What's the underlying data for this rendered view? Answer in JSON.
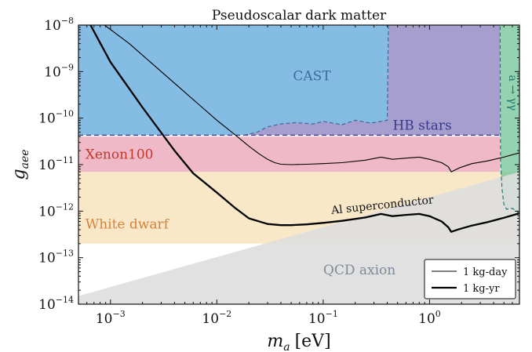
{
  "chart_data": {
    "type": "exclusion-plot",
    "title": "Pseudoscalar dark matter",
    "xlabel_symbol": "m",
    "xlabel_sub": "a",
    "xlabel_unit": "[eV]",
    "ylabel_symbol": "g",
    "ylabel_sub": "aee",
    "x_scale": "log",
    "y_scale": "log",
    "xlim": [
      0.0005,
      7.0
    ],
    "ylim": [
      1e-14,
      1e-08
    ],
    "x_ticks": [
      {
        "value": 0.001,
        "base": "10",
        "exp": "−3"
      },
      {
        "value": 0.01,
        "base": "10",
        "exp": "−2"
      },
      {
        "value": 0.1,
        "base": "10",
        "exp": "−1"
      },
      {
        "value": 1,
        "base": "10",
        "exp": "0"
      }
    ],
    "y_ticks": [
      {
        "value": 1e-08,
        "base": "10",
        "exp": "−8"
      },
      {
        "value": 1e-09,
        "base": "10",
        "exp": "−9"
      },
      {
        "value": 1e-10,
        "base": "10",
        "exp": "−10"
      },
      {
        "value": 1e-11,
        "base": "10",
        "exp": "−11"
      },
      {
        "value": 1e-12,
        "base": "10",
        "exp": "−12"
      },
      {
        "value": 1e-13,
        "base": "10",
        "exp": "−13"
      },
      {
        "value": 1e-14,
        "base": "10",
        "exp": "−14"
      }
    ],
    "regions": [
      {
        "name": "White dwarf",
        "label": "White dwarf",
        "color": "#f2d59a",
        "text_color": "#d8813a",
        "opacity": 0.55,
        "polygon": [
          [
            0.0005,
            2e-13
          ],
          [
            7.0,
            2e-13
          ],
          [
            7.0,
            7e-12
          ],
          [
            0.0005,
            7e-12
          ]
        ],
        "label_at": [
          0.00058,
          4.2e-13
        ]
      },
      {
        "name": "Xenon100",
        "label": "Xenon100",
        "color": "#e37f9a",
        "text_color": "#c0392b",
        "opacity": 0.55,
        "polygon": [
          [
            0.0005,
            7e-12
          ],
          [
            4.6,
            7e-12
          ],
          [
            4.6,
            4e-11
          ],
          [
            0.0005,
            4e-11
          ]
        ],
        "label_at": [
          0.00058,
          1.35e-11
        ]
      },
      {
        "name": "CAST",
        "label": "CAST",
        "color": "#6fb0df",
        "text_color": "#3d6a9a",
        "opacity": 0.85,
        "polygon": [
          [
            0.0005,
            4.3e-11
          ],
          [
            0.018,
            4.3e-11
          ],
          [
            0.024,
            5e-11
          ],
          [
            0.03,
            6.5e-11
          ],
          [
            0.04,
            7.5e-11
          ],
          [
            0.055,
            8e-11
          ],
          [
            0.08,
            7.5e-11
          ],
          [
            0.1,
            8.5e-11
          ],
          [
            0.15,
            7.2e-11
          ],
          [
            0.2,
            9e-11
          ],
          [
            0.28,
            7.8e-11
          ],
          [
            0.4,
            9e-11
          ],
          [
            0.41,
            1e-08
          ],
          [
            0.0005,
            1e-08
          ]
        ],
        "label_at": [
          0.052,
          6.5e-10
        ]
      },
      {
        "name": "HB stars",
        "label": "HB stars",
        "color": "#9c95c9",
        "text_color": "#3a3a8c",
        "opacity": 0.9,
        "polygon": [
          [
            0.0005,
            4.3e-11
          ],
          [
            4.6,
            4.3e-11
          ],
          [
            4.6,
            1e-08
          ],
          [
            0.41,
            1e-08
          ],
          [
            0.4,
            9e-11
          ],
          [
            0.28,
            7.8e-11
          ],
          [
            0.2,
            9e-11
          ],
          [
            0.15,
            7.2e-11
          ],
          [
            0.1,
            8.5e-11
          ],
          [
            0.08,
            7.5e-11
          ],
          [
            0.055,
            8e-11
          ],
          [
            0.04,
            7.5e-11
          ],
          [
            0.03,
            6.5e-11
          ],
          [
            0.024,
            5e-11
          ],
          [
            0.018,
            4.3e-11
          ]
        ],
        "label_at": [
          0.45,
          5.6e-11
        ]
      },
      {
        "name": "a→γγ",
        "label": "a → γγ",
        "color": "#72c398",
        "text_color": "#1f7a6c",
        "opacity": 0.75,
        "polygon": [
          [
            4.6,
            1e-08
          ],
          [
            7.0,
            1e-08
          ],
          [
            7.0,
            9e-13
          ],
          [
            6.0,
            1.15e-12
          ],
          [
            5.3,
            1.1e-12
          ],
          [
            5.0,
            1.4e-12
          ],
          [
            4.8,
            3e-12
          ],
          [
            4.65,
            1.2e-11
          ],
          [
            4.6,
            1e-08
          ]
        ],
        "label_at": [
          5.6,
          3.5e-10
        ]
      },
      {
        "name": "QCD axion",
        "label": "QCD axion",
        "color": "#dedede",
        "text_color": "#7e8a99",
        "opacity": 0.9,
        "polygon": [
          [
            0.0005,
            1e-14
          ],
          [
            7.0,
            1e-14
          ],
          [
            7.0,
            7e-12
          ],
          [
            0.0005,
            1.5e-14
          ]
        ],
        "label_at": [
          0.1,
          4.4e-14
        ]
      }
    ],
    "series": [
      {
        "name": "1 kg-day",
        "width": 1.1,
        "x": [
          0.00088,
          0.0015,
          0.003,
          0.006,
          0.01,
          0.015,
          0.02,
          0.025,
          0.03,
          0.035,
          0.04,
          0.05,
          0.07,
          0.1,
          0.15,
          0.25,
          0.35,
          0.45,
          0.6,
          0.8,
          1.0,
          1.3,
          1.5,
          1.6,
          1.9,
          2.5,
          3.5,
          5.0,
          7.0
        ],
        "y": [
          1e-08,
          4e-09,
          1e-09,
          2.5e-10,
          9e-11,
          4.3e-11,
          2.5e-11,
          1.7e-11,
          1.3e-11,
          1.1e-11,
          1.02e-11,
          1e-11,
          1.02e-11,
          1.05e-11,
          1.1e-11,
          1.25e-11,
          1.45e-11,
          1.3e-11,
          1.38e-11,
          1.45e-11,
          1.3e-11,
          1.1e-11,
          9e-12,
          7e-12,
          8.5e-12,
          1.05e-11,
          1.2e-11,
          1.45e-11,
          1.8e-11
        ]
      },
      {
        "name": "1 kg-yr",
        "width": 2.3,
        "x": [
          0.00065,
          0.001,
          0.002,
          0.004,
          0.006,
          0.01,
          0.015,
          0.02,
          0.03,
          0.04,
          0.05,
          0.07,
          0.1,
          0.15,
          0.25,
          0.35,
          0.45,
          0.6,
          0.8,
          1.0,
          1.3,
          1.5,
          1.6,
          1.9,
          2.5,
          3.5,
          5.0,
          7.0
        ],
        "y": [
          1e-08,
          1.6e-09,
          1.7e-10,
          2e-11,
          6.5e-12,
          2.5e-12,
          1.15e-12,
          7e-13,
          5.3e-13,
          5e-13,
          5e-13,
          5.2e-13,
          5.6e-13,
          6.2e-13,
          7.3e-13,
          8.7e-13,
          7.8e-13,
          8.3e-13,
          8.7e-13,
          7.8e-13,
          6e-13,
          4.5e-13,
          3.6e-13,
          4.1e-13,
          4.9e-13,
          5.8e-13,
          7.2e-13,
          9e-13
        ]
      }
    ],
    "annotations": [
      {
        "name": "al-superconductor-label",
        "text": "Al superconductor",
        "at": [
          0.12,
          8.7e-13
        ],
        "rotation": -6
      }
    ],
    "legend": {
      "position": "lower-right",
      "entries": [
        "1 kg-day",
        "1 kg-yr"
      ]
    },
    "grid": false
  }
}
